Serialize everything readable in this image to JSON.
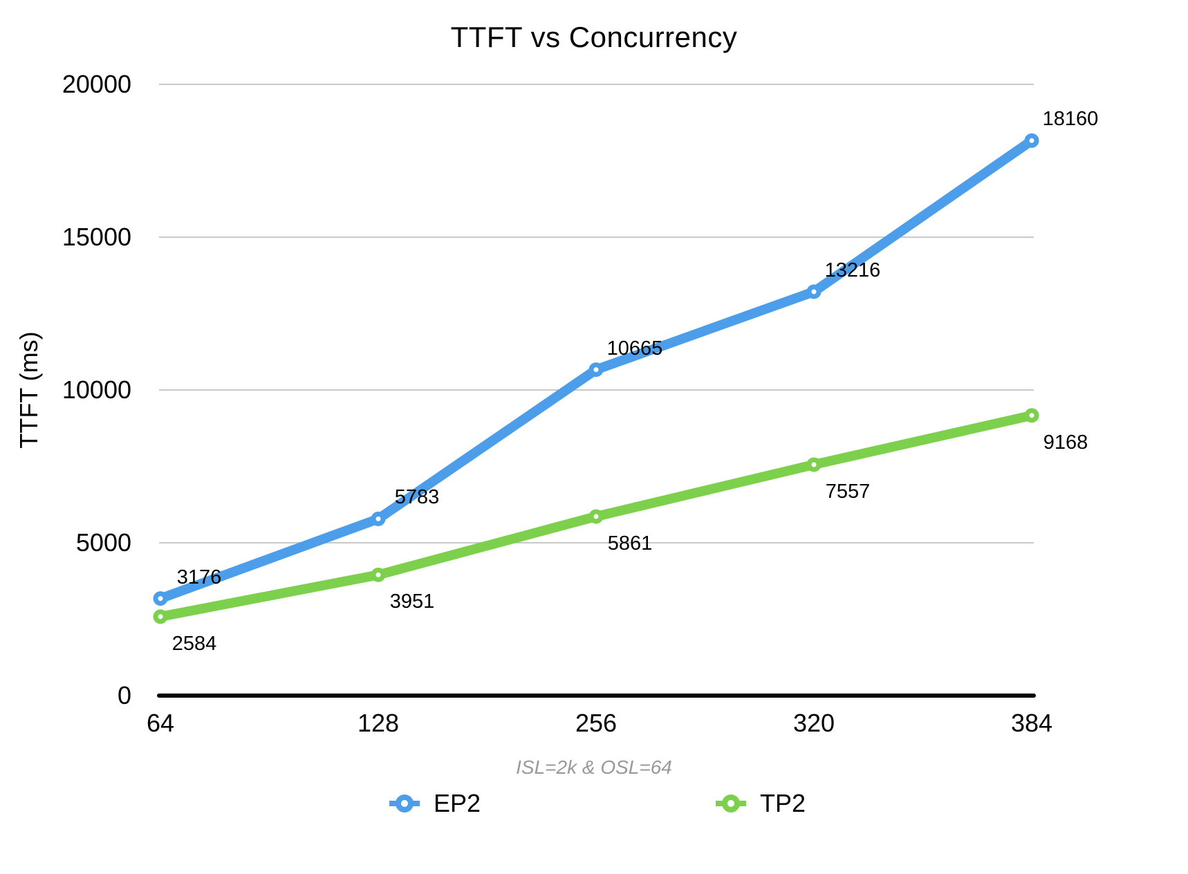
{
  "title": "TTFT vs Concurrency",
  "y_axis_title": "TTFT (ms)",
  "x_axis_subtitle": "ISL=2k & OSL=64",
  "legend": {
    "entries": [
      "EP2",
      "TP2"
    ]
  },
  "chart_data": {
    "type": "line",
    "title": "TTFT vs Concurrency",
    "xlabel": "ISL=2k & OSL=64",
    "ylabel": "TTFT (ms)",
    "categories": [
      "64",
      "128",
      "256",
      "320",
      "384"
    ],
    "series": [
      {
        "name": "EP2",
        "color": "#4D9EEA",
        "values": [
          3176,
          5783,
          10665,
          13216,
          18160
        ]
      },
      {
        "name": "TP2",
        "color": "#7CD04C",
        "values": [
          2584,
          3951,
          5861,
          7557,
          9168
        ]
      }
    ],
    "y_ticks": [
      0,
      5000,
      10000,
      15000,
      20000
    ],
    "ylim": [
      0,
      20000
    ],
    "grid": true,
    "legend_position": "bottom",
    "colors": {
      "gridline": "#C9C9C9",
      "axis_line": "#000000",
      "subtitle_text": "#999999",
      "label_text": "#000000",
      "marker_hole": "#FFFFFF"
    }
  }
}
